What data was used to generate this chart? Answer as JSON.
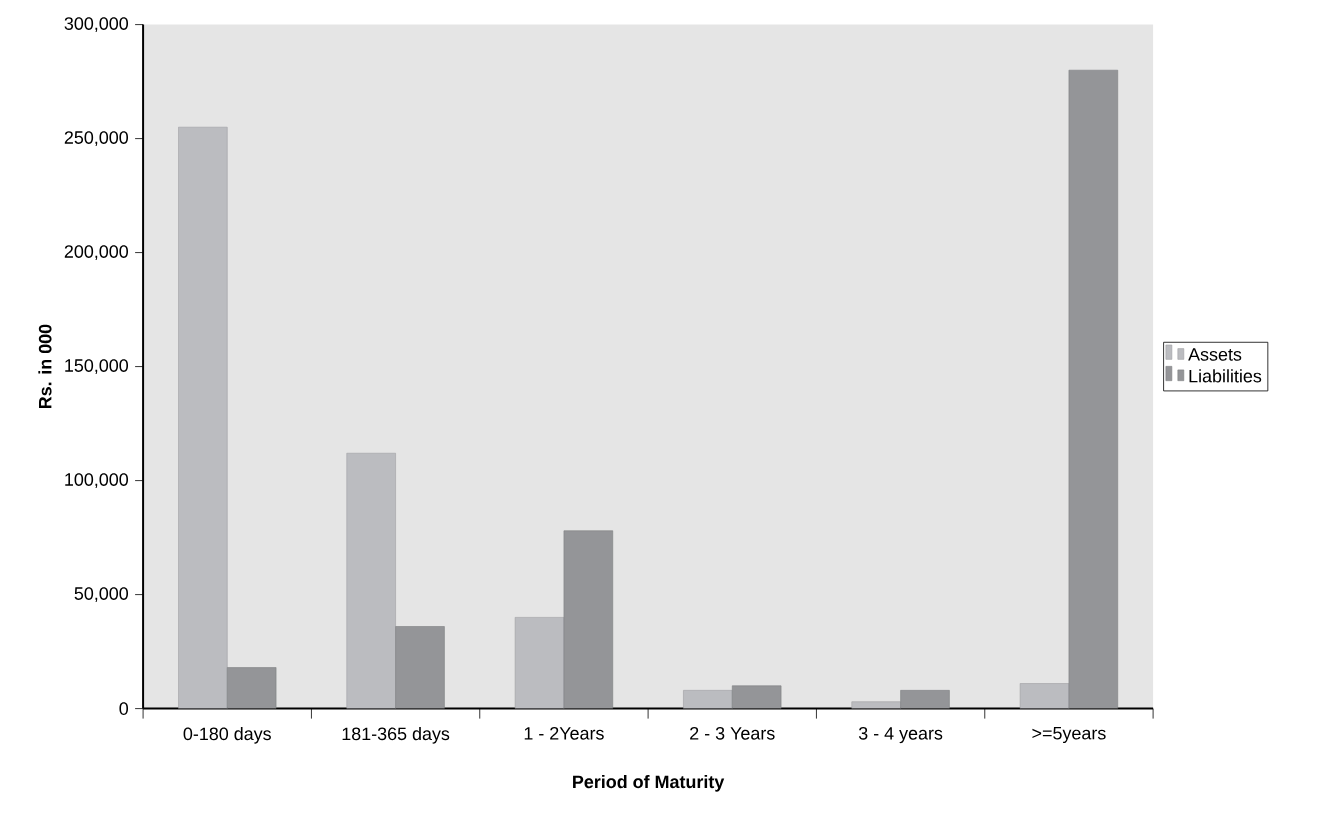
{
  "chart_data": {
    "type": "bar",
    "xlabel": "Period of Maturity",
    "ylabel": "Rs. in 000",
    "categories": [
      "0-180 days",
      "181-365 days",
      "1 - 2Years",
      "2 - 3 Years",
      "3 - 4 years",
      ">=5years"
    ],
    "series": [
      {
        "name": "Assets",
        "color": "#bbbcc0",
        "values": [
          255000,
          112000,
          40000,
          8000,
          3000,
          11000
        ]
      },
      {
        "name": "Liabilities",
        "color": "#949598",
        "values": [
          18000,
          36000,
          78000,
          10000,
          8000,
          280000
        ]
      }
    ],
    "ylim": [
      0,
      300000
    ],
    "yticks": [
      {
        "value": 0,
        "label": "0"
      },
      {
        "value": 50000,
        "label": "50,000"
      },
      {
        "value": 100000,
        "label": "100,000"
      },
      {
        "value": 150000,
        "label": "150,000"
      },
      {
        "value": 200000,
        "label": "200,000"
      },
      {
        "value": 250000,
        "label": "250,000"
      },
      {
        "value": 300000,
        "label": "300,000"
      }
    ],
    "grid": false,
    "legend": "right"
  }
}
